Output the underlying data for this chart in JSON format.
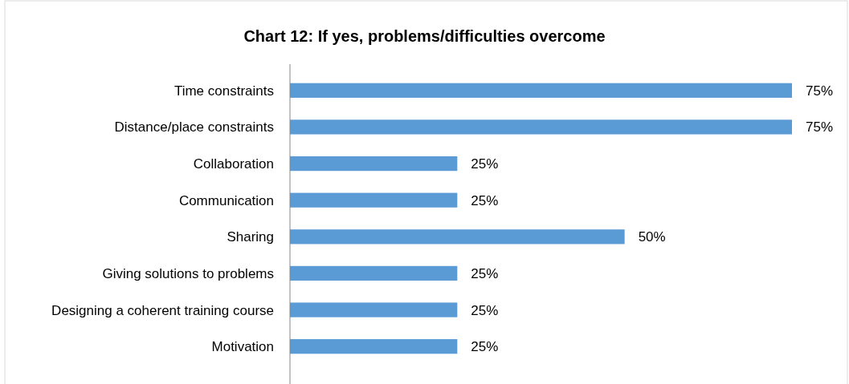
{
  "chart_data": {
    "type": "bar",
    "orientation": "horizontal",
    "title": "Chart 12: If yes, problems/difficulties overcome",
    "categories": [
      "Time constraints",
      "Distance/place constraints",
      "Collaboration",
      "Communication",
      "Sharing",
      "Giving solutions to problems",
      "Designing a coherent training course",
      "Motivation"
    ],
    "values": [
      75,
      75,
      25,
      25,
      50,
      25,
      25,
      25
    ],
    "value_labels": [
      "75%",
      "75%",
      "25%",
      "25%",
      "50%",
      "25%",
      "25%",
      "25%"
    ],
    "color": "#5b9bd5"
  }
}
